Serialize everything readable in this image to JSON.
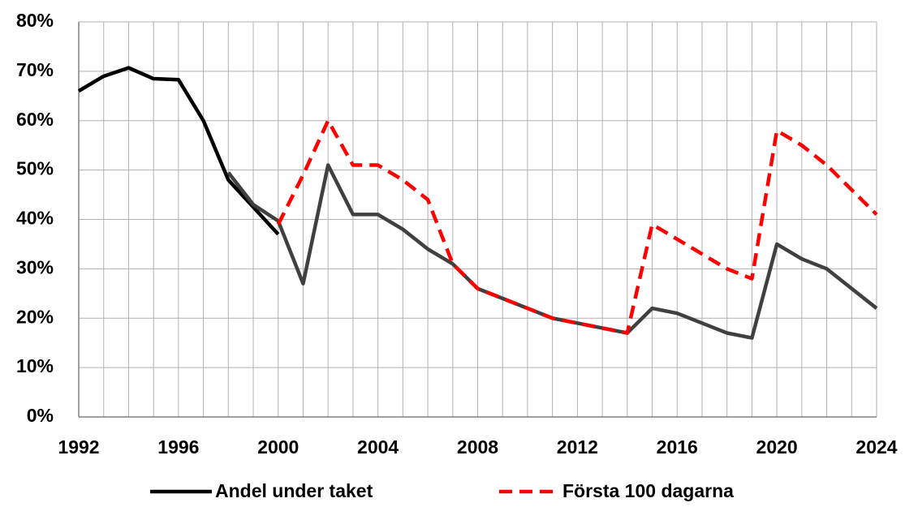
{
  "chart_data": {
    "type": "line",
    "x": [
      1992,
      1993,
      1994,
      1995,
      1996,
      1997,
      1998,
      1999,
      2000,
      2001,
      2002,
      2003,
      2004,
      2005,
      2006,
      2007,
      2008,
      2009,
      2010,
      2011,
      2012,
      2013,
      2014,
      2015,
      2016,
      2017,
      2018,
      2019,
      2020,
      2021,
      2022,
      2023,
      2024
    ],
    "series": [
      {
        "name": "Andel under taket",
        "color": "#000000",
        "dash": false,
        "values": [
          66,
          69,
          70.7,
          68.5,
          68.3,
          60,
          48,
          42.5,
          37,
          null,
          null,
          null,
          null,
          null,
          null,
          null,
          null,
          null,
          null,
          null,
          null,
          null,
          null,
          null,
          null,
          null,
          null,
          null,
          null,
          null,
          null,
          null,
          null
        ]
      },
      {
        "color": "#404040",
        "dash": false,
        "values": [
          null,
          null,
          null,
          null,
          null,
          null,
          49.5,
          43,
          39.7,
          27,
          51,
          41,
          41,
          38,
          34,
          31,
          26,
          24,
          22,
          20,
          19,
          18,
          17,
          22,
          21,
          19,
          17,
          16,
          35,
          32,
          30,
          26,
          22
        ]
      },
      {
        "name": "Första 100 dagarna",
        "color": "#ff0000",
        "dash": true,
        "values": [
          null,
          null,
          null,
          null,
          null,
          null,
          null,
          null,
          39,
          49,
          60,
          51,
          51,
          48,
          44,
          31,
          26,
          24,
          22,
          20,
          19,
          18,
          17,
          39,
          36,
          33,
          30,
          28,
          58,
          55,
          51,
          46,
          41
        ]
      }
    ],
    "xlim": [
      1992,
      2024
    ],
    "xticks": [
      1992,
      1996,
      2000,
      2004,
      2008,
      2012,
      2016,
      2020,
      2024
    ],
    "ylim": [
      0,
      80
    ],
    "yticks": [
      {
        "value": 0,
        "label": "0%"
      },
      {
        "value": 10,
        "label": "10%"
      },
      {
        "value": 20,
        "label": "20%"
      },
      {
        "value": 30,
        "label": "30%"
      },
      {
        "value": 40,
        "label": "40%"
      },
      {
        "value": 50,
        "label": "50%"
      },
      {
        "value": 60,
        "label": "60%"
      },
      {
        "value": 70,
        "label": "70%"
      },
      {
        "value": 80,
        "label": "80%"
      }
    ],
    "grid": true
  }
}
